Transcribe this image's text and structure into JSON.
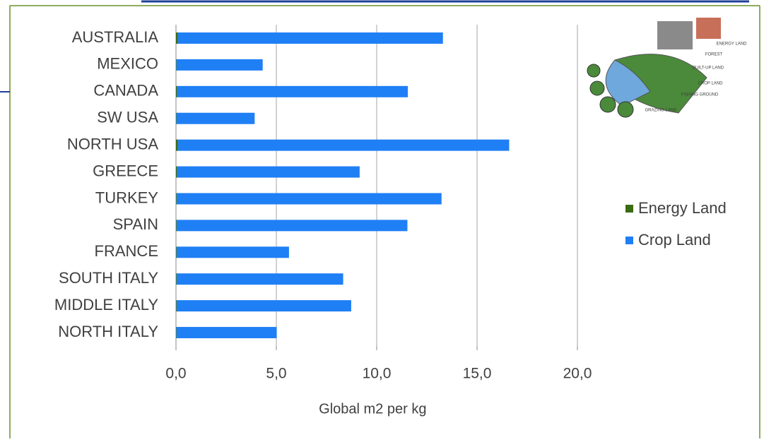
{
  "chart_data": {
    "type": "stacked-bar-horizontal",
    "categories": [
      "AUSTRALIA",
      "MEXICO",
      "CANADA",
      "SW USA",
      "NORTH USA",
      "GREECE",
      "TURKEY",
      "SPAIN",
      "FRANCE",
      "SOUTH ITALY",
      "MIDDLE ITALY",
      "NORTH ITALY"
    ],
    "series": [
      {
        "name": "Energy Land",
        "color": "#3b6b12",
        "values": [
          0.1,
          0.02,
          0.05,
          0.02,
          0.1,
          0.05,
          0.03,
          0.03,
          0.03,
          0.03,
          0.03,
          0.02
        ]
      },
      {
        "name": "Crop Land",
        "color": "#1f7ff5",
        "values": [
          13.2,
          4.3,
          11.5,
          3.9,
          16.5,
          9.1,
          13.2,
          11.5,
          5.6,
          8.3,
          8.7,
          5.0
        ]
      }
    ],
    "xlim": [
      0,
      20
    ],
    "xticks": [
      {
        "value": 0,
        "label": "0,0"
      },
      {
        "value": 5,
        "label": "5,0"
      },
      {
        "value": 10,
        "label": "10,0"
      },
      {
        "value": 15,
        "label": "15,0"
      },
      {
        "value": 20,
        "label": "20,0"
      }
    ],
    "xlabel": "Global m2 per  kg",
    "grid": true,
    "legend": "right",
    "illustration_labels": [
      "ENERGY LAND",
      "FOREST",
      "BUILT-UP LAND",
      "CROP LAND",
      "FISHING GROUND",
      "GRAZING LAND"
    ]
  }
}
